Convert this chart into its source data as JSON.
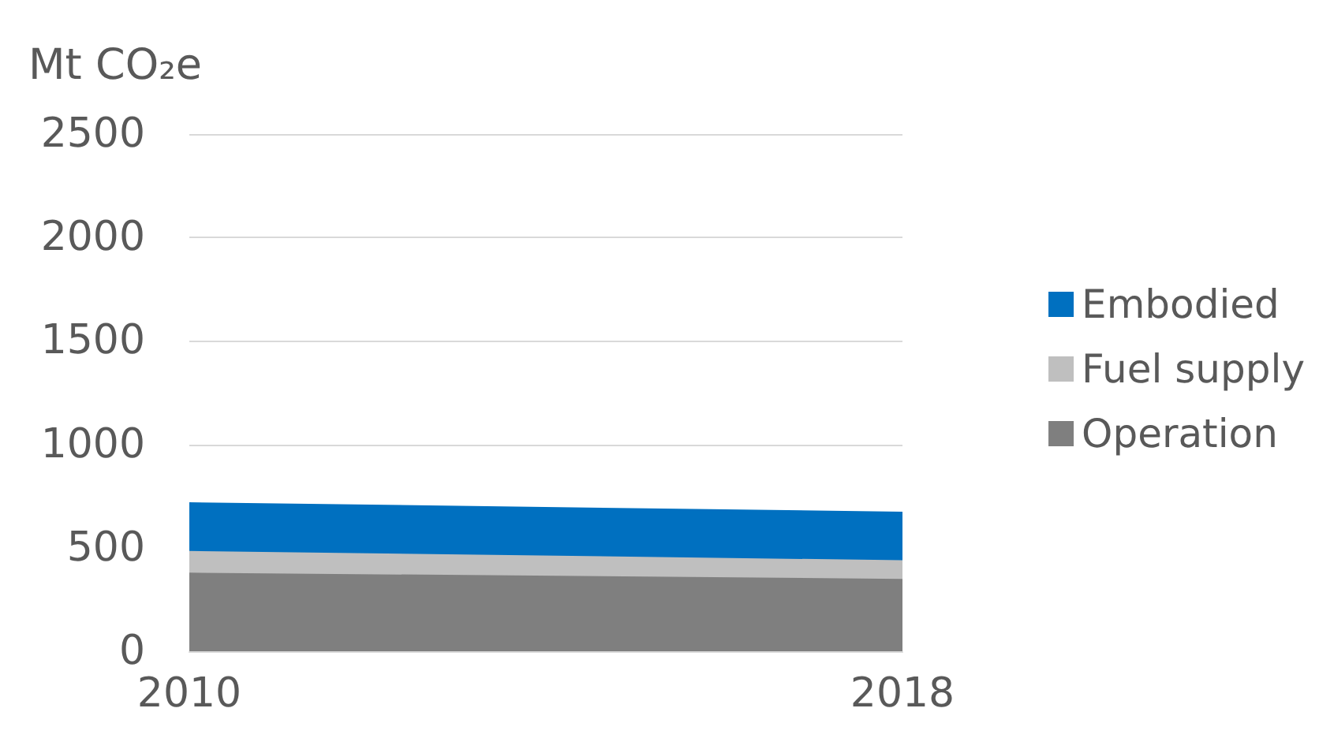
{
  "chart_data": {
    "type": "area",
    "ylabel": "Mt CO₂e",
    "x": [
      2010,
      2018
    ],
    "xlim": [
      2010,
      2018
    ],
    "xticks": [
      2010,
      2018
    ],
    "ylim": [
      0,
      2500
    ],
    "yticks": [
      0,
      500,
      1000,
      1500,
      2000,
      2500
    ],
    "stacked": true,
    "grid": "y",
    "legend": "right",
    "series": [
      {
        "name": "Operation",
        "color": "#7f7f7f",
        "values": [
          380,
          350
        ]
      },
      {
        "name": "Fuel supply",
        "color": "#bfbfbf",
        "values": [
          105,
          90
        ]
      },
      {
        "name": "Embodied",
        "color": "#0070c0",
        "values": [
          235,
          235
        ]
      }
    ]
  }
}
